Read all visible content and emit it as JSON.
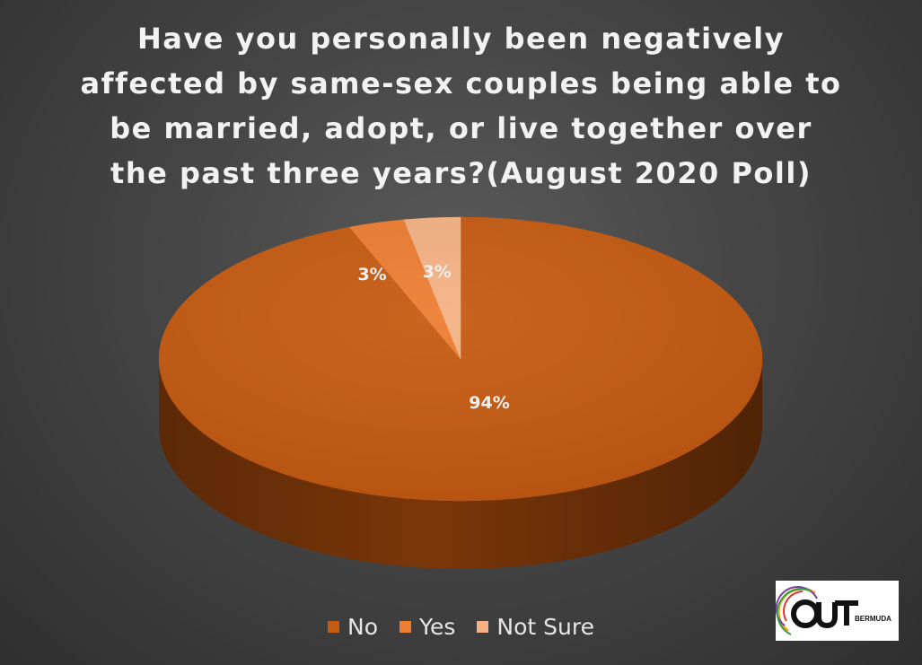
{
  "title": "Have you personally been negatively\naffected by same-sex couples being able to\nbe married, adopt, or live together over\nthe past three years?(August 2020 Poll)",
  "logo": {
    "text": "BERMUDA",
    "wordmark": "OUT"
  },
  "chart_data": {
    "type": "pie",
    "style": "3d",
    "title": "Have you personally been negatively affected by same-sex couples being able to be married, adopt, or live together over the past three years?(August 2020 Poll)",
    "legend_position": "bottom",
    "categories": [
      "No",
      "Yes",
      "Not Sure"
    ],
    "values": [
      94,
      3,
      3
    ],
    "data_labels": [
      "94%",
      "3%",
      "3%"
    ],
    "colors": [
      "#c55a11",
      "#ed7d31",
      "#f4b183"
    ],
    "side_colors": [
      "#7a3609",
      "#a34d14",
      "#b07a58"
    ]
  }
}
